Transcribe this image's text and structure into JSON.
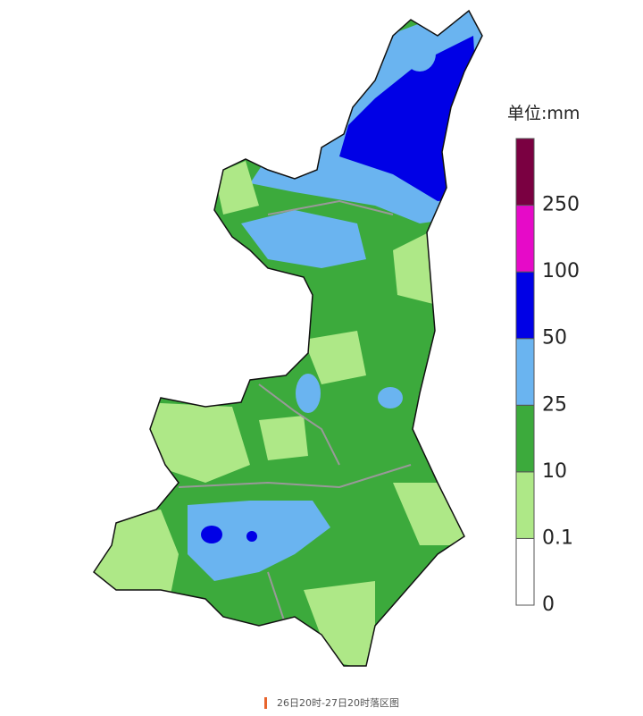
{
  "legend": {
    "title": "单位:mm",
    "labels": [
      0,
      0.1,
      10,
      25,
      50,
      100,
      250
    ],
    "colors": [
      "#ffffff",
      "#aee887",
      "#3caa3c",
      "#6ab4f0",
      "#0000e6",
      "#e60ac8",
      "#7a0041"
    ]
  },
  "caption": "26日20时-27日20时落区图"
}
